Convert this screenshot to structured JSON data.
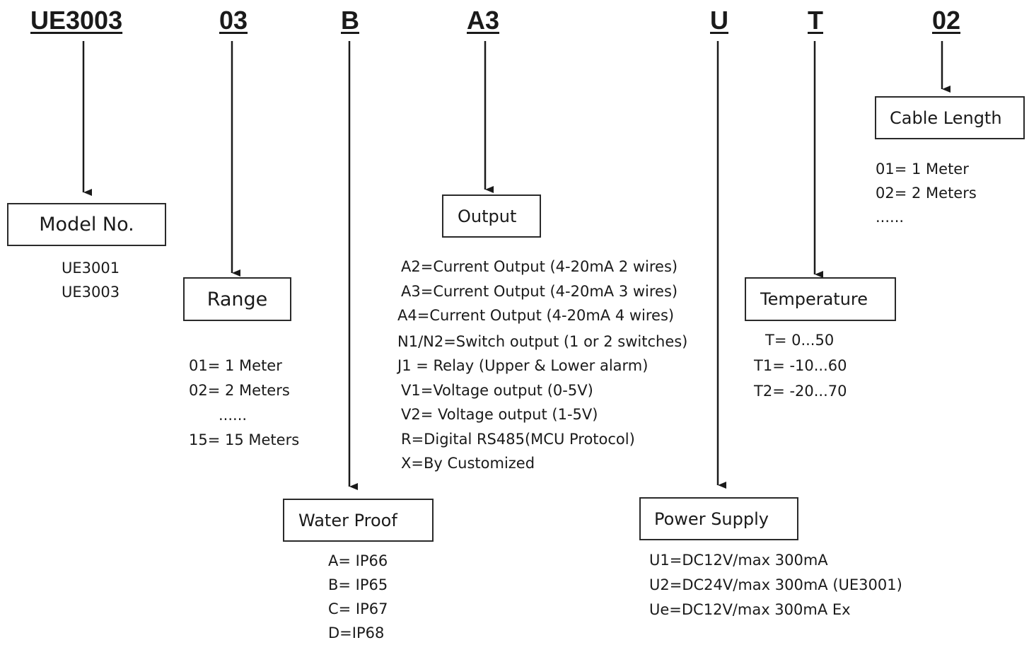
{
  "codes": {
    "model": "UE3003",
    "range": "03",
    "waterproof": "B",
    "output": "A3",
    "power": "U",
    "temperature": "T",
    "cable": "02"
  },
  "boxes": {
    "model": "Model No.",
    "range": "Range",
    "waterproof": "Water Proof",
    "output": "Output",
    "power": "Power Supply",
    "temperature": "Temperature",
    "cable": "Cable Length"
  },
  "options": {
    "model": [
      "UE3001",
      "UE3003"
    ],
    "range": [
      "01= 1 Meter",
      "02= 2 Meters",
      "......",
      "15= 15 Meters"
    ],
    "waterproof": [
      "A= IP66",
      "B= IP65",
      "C= IP67",
      "D=IP68"
    ],
    "output": [
      "A2=Current Output (4-20mA 2 wires)",
      "A3=Current Output (4-20mA 3 wires)",
      "A4=Current Output (4-20mA 4 wires)",
      "N1/N2=Switch output (1 or 2 switches)",
      "J1 = Relay (Upper & Lower alarm)",
      "V1=Voltage output (0-5V)",
      "V2= Voltage output (1-5V)",
      "R=Digital RS485(MCU Protocol)",
      "X=By Customized"
    ],
    "power": [
      "U1=DC12V/max 300mA",
      "U2=DC24V/max 300mA (UE3001)",
      "Ue=DC12V/max 300mA Ex"
    ],
    "temperature": [
      "T= 0...50",
      "T1= -10...60",
      "T2= -20...70"
    ],
    "cable": [
      "01= 1 Meter",
      "02= 2 Meters",
      "......"
    ]
  }
}
